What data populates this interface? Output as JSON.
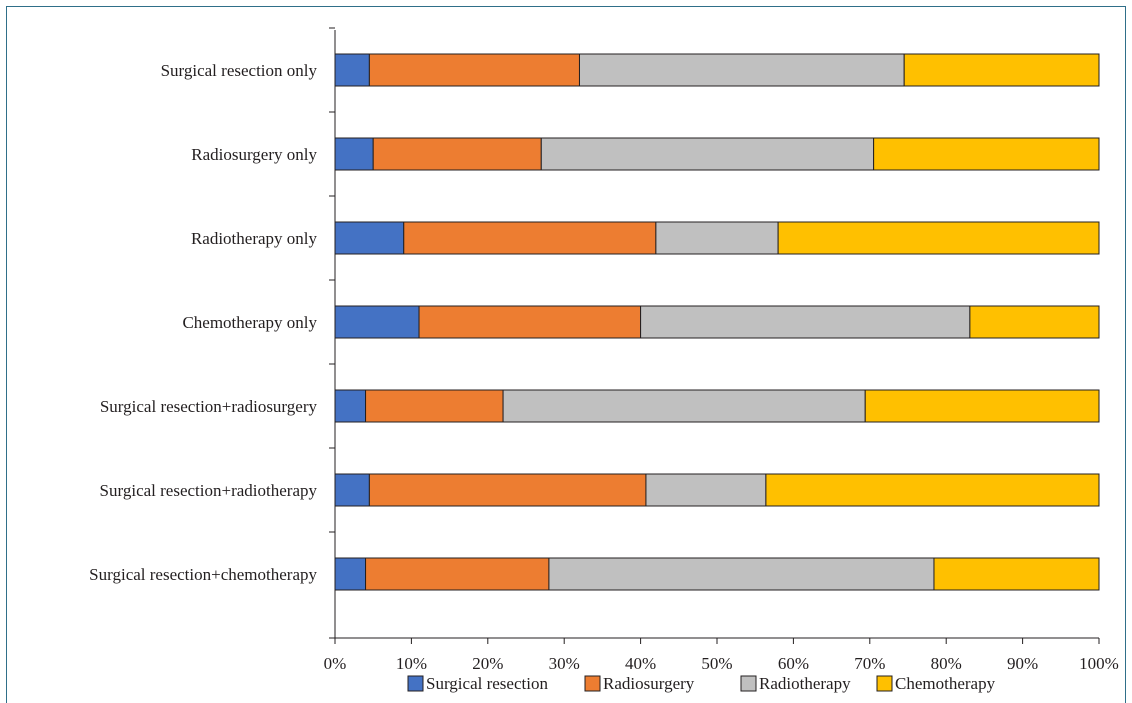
{
  "chart_data": {
    "type": "bar",
    "orientation": "horizontal",
    "stacked": true,
    "percent": true,
    "categories": [
      "Surgical  resection only",
      "Radiosurgery only",
      "Radiotherapy only",
      "Chemotherapy only",
      "Surgical resection+radiosurgery",
      "Surgical resection+radiotherapy",
      "Surgical resection+chemotherapy"
    ],
    "series": [
      {
        "name": "Surgical resection",
        "color": "#4472c4",
        "values": [
          4.5,
          5,
          9,
          11,
          4,
          4.5,
          4
        ]
      },
      {
        "name": "Radiosurgery",
        "color": "#ed7d31",
        "values": [
          27.5,
          22,
          33,
          29,
          18,
          36.2,
          24
        ]
      },
      {
        "name": "Radiotherapy",
        "color": "#c0c0c0",
        "values": [
          42.5,
          43.5,
          16,
          43.1,
          47.4,
          15.7,
          50.4
        ]
      },
      {
        "name": "Chemotherapy",
        "color": "#ffc000",
        "values": [
          25.5,
          29.5,
          42,
          16.9,
          30.6,
          43.6,
          21.6
        ]
      }
    ],
    "xlim": [
      0,
      100
    ],
    "xticks": [
      "0%",
      "10%",
      "20%",
      "30%",
      "40%",
      "50%",
      "60%",
      "70%",
      "80%",
      "90%",
      "100%"
    ],
    "grid": false,
    "legend_position": "bottom"
  }
}
